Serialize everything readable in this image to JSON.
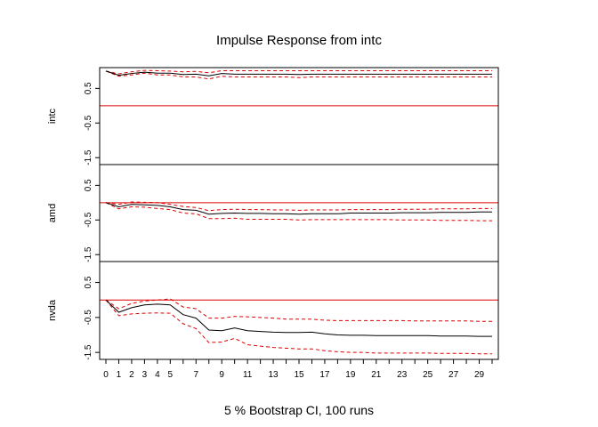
{
  "chart_data": {
    "type": "line",
    "title": "Impulse Response from intc",
    "xlabel": "5 % Bootstrap CI,  100 runs",
    "x": [
      0,
      1,
      2,
      3,
      4,
      5,
      6,
      7,
      8,
      9,
      10,
      11,
      12,
      13,
      14,
      15,
      16,
      17,
      18,
      19,
      20,
      21,
      22,
      23,
      24,
      25,
      26,
      27,
      28,
      29,
      30
    ],
    "x_tick_labels": [
      "0",
      "1",
      "2",
      "3",
      "4",
      "5",
      "7",
      "9",
      "11",
      "13",
      "15",
      "17",
      "19",
      "21",
      "23",
      "25",
      "27",
      "29"
    ],
    "x_tick_values": [
      0,
      1,
      2,
      3,
      4,
      5,
      7,
      9,
      11,
      13,
      15,
      17,
      19,
      21,
      23,
      25,
      27,
      29
    ],
    "x_minor_ticks": [
      6,
      8,
      10,
      12,
      14,
      16,
      18,
      20,
      22,
      24,
      26,
      28,
      30
    ],
    "ylim": [
      -1.7,
      1.1
    ],
    "y_ticks": [
      "0.5",
      "-0.5",
      "-1.5"
    ],
    "y_tick_values": [
      0.5,
      -0.5,
      -1.5
    ],
    "reference_line": 0,
    "colors": {
      "response": "#000000",
      "ci": "#dd0000",
      "zero": "#dd0000"
    },
    "panels": [
      {
        "name": "intc",
        "response": [
          1.0,
          0.88,
          0.93,
          0.97,
          0.94,
          0.94,
          0.9,
          0.91,
          0.86,
          0.93,
          0.91,
          0.91,
          0.91,
          0.91,
          0.91,
          0.9,
          0.91,
          0.91,
          0.91,
          0.91,
          0.91,
          0.91,
          0.91,
          0.91,
          0.91,
          0.91,
          0.91,
          0.91,
          0.91,
          0.91,
          0.91
        ],
        "upper": [
          1.0,
          0.92,
          0.98,
          1.02,
          1.01,
          1.0,
          0.98,
          0.99,
          0.95,
          1.01,
          1.01,
          1.01,
          1.01,
          1.01,
          1.01,
          1.01,
          1.01,
          1.01,
          1.01,
          1.01,
          1.01,
          1.01,
          1.01,
          1.01,
          1.01,
          1.01,
          1.01,
          1.01,
          1.01,
          1.01,
          1.01
        ],
        "lower": [
          1.0,
          0.85,
          0.89,
          0.94,
          0.89,
          0.89,
          0.83,
          0.83,
          0.77,
          0.85,
          0.83,
          0.83,
          0.83,
          0.83,
          0.83,
          0.81,
          0.83,
          0.83,
          0.83,
          0.83,
          0.83,
          0.83,
          0.83,
          0.83,
          0.83,
          0.83,
          0.83,
          0.83,
          0.83,
          0.83,
          0.83
        ]
      },
      {
        "name": "amd",
        "response": [
          0.0,
          -0.12,
          -0.05,
          -0.06,
          -0.08,
          -0.12,
          -0.2,
          -0.22,
          -0.33,
          -0.31,
          -0.3,
          -0.31,
          -0.31,
          -0.32,
          -0.32,
          -0.33,
          -0.32,
          -0.32,
          -0.32,
          -0.3,
          -0.3,
          -0.3,
          -0.3,
          -0.29,
          -0.29,
          -0.29,
          -0.28,
          -0.28,
          -0.28,
          -0.27,
          -0.27
        ],
        "upper": [
          0.0,
          -0.05,
          0.02,
          0.01,
          0.0,
          -0.05,
          -0.11,
          -0.14,
          -0.23,
          -0.2,
          -0.19,
          -0.2,
          -0.2,
          -0.21,
          -0.21,
          -0.22,
          -0.21,
          -0.21,
          -0.21,
          -0.2,
          -0.2,
          -0.2,
          -0.2,
          -0.19,
          -0.19,
          -0.19,
          -0.18,
          -0.18,
          -0.18,
          -0.17,
          -0.17
        ],
        "lower": [
          0.0,
          -0.18,
          -0.12,
          -0.13,
          -0.17,
          -0.2,
          -0.3,
          -0.32,
          -0.46,
          -0.46,
          -0.45,
          -0.48,
          -0.48,
          -0.48,
          -0.48,
          -0.5,
          -0.49,
          -0.49,
          -0.49,
          -0.49,
          -0.49,
          -0.49,
          -0.49,
          -0.5,
          -0.5,
          -0.5,
          -0.51,
          -0.51,
          -0.51,
          -0.52,
          -0.52
        ]
      },
      {
        "name": "nvda",
        "response": [
          0.0,
          -0.35,
          -0.22,
          -0.14,
          -0.12,
          -0.14,
          -0.42,
          -0.52,
          -0.86,
          -0.88,
          -0.8,
          -0.88,
          -0.9,
          -0.92,
          -0.93,
          -0.93,
          -0.92,
          -0.97,
          -1.0,
          -1.01,
          -1.01,
          -1.02,
          -1.02,
          -1.02,
          -1.02,
          -1.02,
          -1.03,
          -1.03,
          -1.03,
          -1.04,
          -1.04
        ],
        "upper": [
          0.0,
          -0.25,
          -0.1,
          -0.03,
          0.0,
          0.03,
          -0.2,
          -0.25,
          -0.52,
          -0.52,
          -0.47,
          -0.48,
          -0.5,
          -0.52,
          -0.55,
          -0.55,
          -0.55,
          -0.58,
          -0.59,
          -0.59,
          -0.59,
          -0.59,
          -0.59,
          -0.59,
          -0.6,
          -0.6,
          -0.6,
          -0.6,
          -0.6,
          -0.61,
          -0.61
        ],
        "lower": [
          0.0,
          -0.45,
          -0.4,
          -0.38,
          -0.37,
          -0.38,
          -0.68,
          -0.82,
          -1.22,
          -1.2,
          -1.1,
          -1.28,
          -1.32,
          -1.36,
          -1.38,
          -1.4,
          -1.4,
          -1.45,
          -1.48,
          -1.5,
          -1.5,
          -1.52,
          -1.52,
          -1.52,
          -1.52,
          -1.52,
          -1.53,
          -1.53,
          -1.53,
          -1.54,
          -1.54
        ]
      }
    ]
  }
}
